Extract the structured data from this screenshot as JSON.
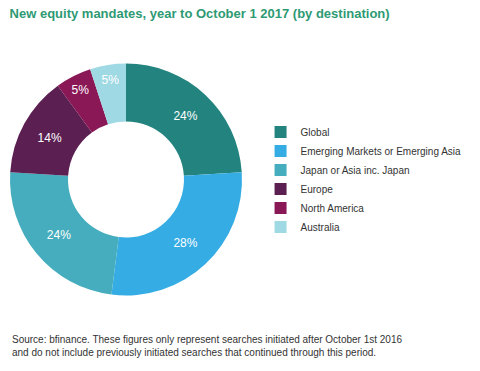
{
  "chart_data": {
    "type": "donut",
    "title": "New equity mandates, year to October 1 2017 (by destination)",
    "categories": [
      "Global",
      "Emerging Markets or Emerging Asia",
      "Japan or Asia inc. Japan",
      "Europe",
      "North America",
      "Australia"
    ],
    "values": [
      24,
      28,
      24,
      14,
      5,
      5
    ],
    "value_labels": [
      "24%",
      "28%",
      "24%",
      "14%",
      "5%",
      "5%"
    ],
    "colors": [
      "#23847f",
      "#35ace4",
      "#45adbd",
      "#5b1f52",
      "#8a1756",
      "#9fd9e4"
    ],
    "data_labels": true,
    "legend": "right",
    "source_note": [
      "Source: bfinance. These figures only represent searches initiated after October 1st 2016",
      "and do not include previously initiated searches that continued through this period."
    ]
  }
}
